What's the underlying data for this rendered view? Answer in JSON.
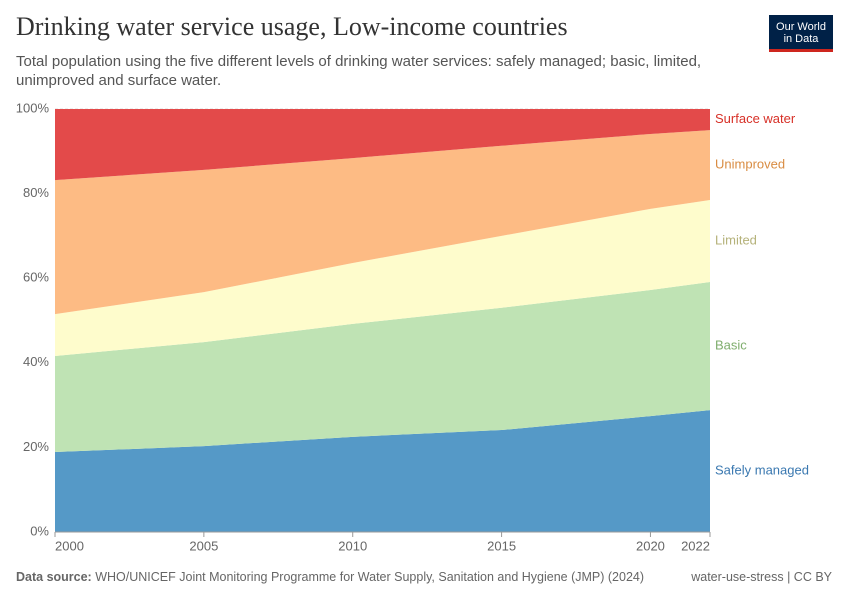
{
  "chart_data": {
    "type": "stacked-area",
    "title": "Drinking water service usage, Low-income countries",
    "subtitle": "Total population using the five different levels of drinking water services: safely managed; basic, limited, unimproved and surface water.",
    "logo": [
      "Our World",
      "in Data"
    ],
    "source_label": "Data source:",
    "source": "WHO/UNICEF Joint Monitoring Programme for Water Supply, Sanitation and Hygiene (JMP) (2024)",
    "footer_right": "water-use-stress | CC BY",
    "x": [
      2000,
      2005,
      2010,
      2015,
      2020,
      2022
    ],
    "xlim": [
      2000,
      2022
    ],
    "xticks": [
      2000,
      2005,
      2010,
      2015,
      2020,
      2022
    ],
    "ylim": [
      0,
      100
    ],
    "yticks": [
      {
        "value": 0,
        "label": "0%"
      },
      {
        "value": 20,
        "label": "20%"
      },
      {
        "value": 40,
        "label": "40%"
      },
      {
        "value": 60,
        "label": "60%"
      },
      {
        "value": 80,
        "label": "80%"
      },
      {
        "value": 100,
        "label": "100%"
      }
    ],
    "grid": true,
    "series": [
      {
        "name": "Safely managed",
        "color": "#5599c7",
        "label_color": "#3a78b0",
        "values": [
          18.9,
          20.3,
          22.5,
          24.1,
          27.4,
          28.8
        ]
      },
      {
        "name": "Basic",
        "color": "#bfe3b4",
        "label_color": "#7fae6d",
        "values": [
          22.7,
          24.6,
          26.7,
          28.9,
          29.8,
          30.3
        ]
      },
      {
        "name": "Limited",
        "color": "#fefccc",
        "label_color": "#b5b27a",
        "values": [
          9.9,
          11.8,
          14.4,
          17.0,
          19.2,
          19.4
        ]
      },
      {
        "name": "Unimproved",
        "color": "#fdbb84",
        "label_color": "#d98c42",
        "values": [
          31.7,
          28.9,
          24.8,
          21.3,
          17.7,
          16.5
        ]
      },
      {
        "name": "Surface water",
        "color": "#e34a4a",
        "label_color": "#d73027",
        "values": [
          16.8,
          14.4,
          11.6,
          8.7,
          5.9,
          5.0
        ]
      }
    ]
  }
}
